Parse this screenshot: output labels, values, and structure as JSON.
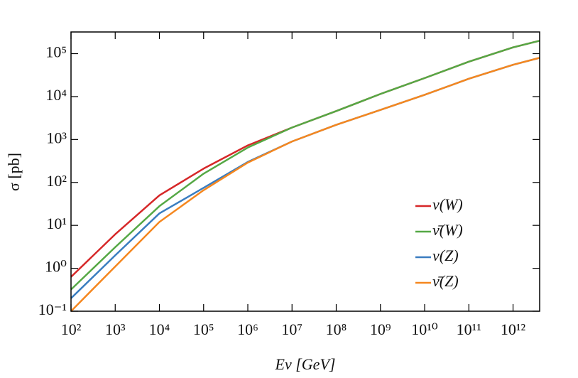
{
  "chart_data": {
    "type": "line",
    "x_label": "Eν [GeV]",
    "y_label": "σ [pb]",
    "x": [
      100,
      1000,
      10000,
      100000,
      1000000,
      10000000,
      100000000,
      1000000000,
      10000000000,
      100000000000,
      1000000000000,
      4000000000000
    ],
    "series": [
      {
        "name": "ν(W)",
        "color": "#d62728",
        "values": [
          0.63,
          6.2,
          50,
          210,
          730,
          1900,
          4600,
          11500,
          27000,
          65000,
          140000,
          200000
        ]
      },
      {
        "name": "ν̄(W)",
        "color": "#55a845",
        "values": [
          0.32,
          3.1,
          28,
          160,
          650,
          1900,
          4600,
          11500,
          27000,
          65000,
          140000,
          200000
        ]
      },
      {
        "name": "ν(Z)",
        "color": "#3a7dc0",
        "values": [
          0.2,
          2,
          19,
          75,
          300,
          900,
          2200,
          4900,
          11000,
          26000,
          55000,
          80000
        ]
      },
      {
        "name": "ν̄(Z)",
        "color": "#f5871f",
        "values": [
          0.1,
          1.1,
          12,
          66,
          290,
          900,
          2200,
          4900,
          11000,
          26000,
          55000,
          80000
        ]
      }
    ],
    "xscale": "log",
    "yscale": "log",
    "xlim": [
      100,
      4000000000000
    ],
    "ylim": [
      0.1,
      320000
    ],
    "xticks": [
      {
        "value": 100,
        "label": "10²"
      },
      {
        "value": 1000,
        "label": "10³"
      },
      {
        "value": 10000,
        "label": "10⁴"
      },
      {
        "value": 100000,
        "label": "10⁵"
      },
      {
        "value": 1000000,
        "label": "10⁶"
      },
      {
        "value": 10000000,
        "label": "10⁷"
      },
      {
        "value": 100000000,
        "label": "10⁸"
      },
      {
        "value": 1000000000,
        "label": "10⁹"
      },
      {
        "value": 10000000000,
        "label": "10¹⁰"
      },
      {
        "value": 100000000000,
        "label": "10¹¹"
      },
      {
        "value": 1000000000000,
        "label": "10¹²"
      }
    ],
    "yticks": [
      {
        "value": 0.1,
        "label": "10⁻¹"
      },
      {
        "value": 1,
        "label": "10⁰"
      },
      {
        "value": 10,
        "label": "10¹"
      },
      {
        "value": 100,
        "label": "10²"
      },
      {
        "value": 1000,
        "label": "10³"
      },
      {
        "value": 10000,
        "label": "10⁴"
      },
      {
        "value": 100000,
        "label": "10⁵"
      }
    ],
    "grid": false,
    "legend": "lower right"
  }
}
